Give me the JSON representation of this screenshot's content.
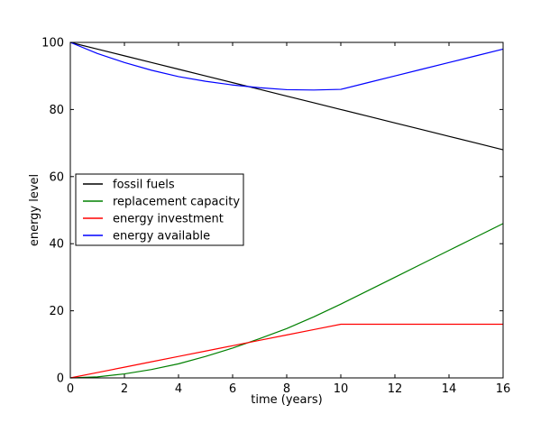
{
  "chart_data": {
    "type": "line",
    "title": "",
    "xlabel": "time (years)",
    "ylabel": "energy level",
    "xlim": [
      0,
      16
    ],
    "ylim": [
      0,
      100
    ],
    "xticks": [
      0,
      2,
      4,
      6,
      8,
      10,
      12,
      14,
      16
    ],
    "yticks": [
      0,
      20,
      40,
      60,
      80,
      100
    ],
    "grid": false,
    "legend_position": "center-left",
    "x": [
      0,
      1,
      2,
      3,
      4,
      5,
      6,
      7,
      8,
      9,
      10,
      11,
      12,
      13,
      14,
      15,
      16
    ],
    "series": [
      {
        "name": "fossil fuels",
        "color": "#000000",
        "values": [
          100,
          98,
          96,
          94,
          92,
          90,
          88,
          86,
          84,
          82,
          80,
          78,
          76,
          74,
          72,
          70,
          68
        ]
      },
      {
        "name": "replacement capacity",
        "color": "#008000",
        "values": [
          0,
          0.3,
          1.2,
          2.5,
          4.2,
          6.4,
          8.9,
          11.7,
          14.7,
          18.2,
          22.0,
          26.0,
          30.0,
          34.0,
          38.0,
          42.0,
          46.0
        ]
      },
      {
        "name": "energy investment",
        "color": "#ff0000",
        "values": [
          0,
          1.6,
          3.2,
          4.8,
          6.4,
          8.0,
          9.6,
          11.2,
          12.8,
          14.4,
          16.0,
          16.0,
          16.0,
          16.0,
          16.0,
          16.0,
          16.0
        ]
      },
      {
        "name": "energy available",
        "color": "#0000ff",
        "values": [
          100,
          96.7,
          94.0,
          91.7,
          89.8,
          88.4,
          87.3,
          86.5,
          85.9,
          85.8,
          86.0,
          88.0,
          90.0,
          92.0,
          94.0,
          96.0,
          98.0
        ]
      }
    ]
  }
}
